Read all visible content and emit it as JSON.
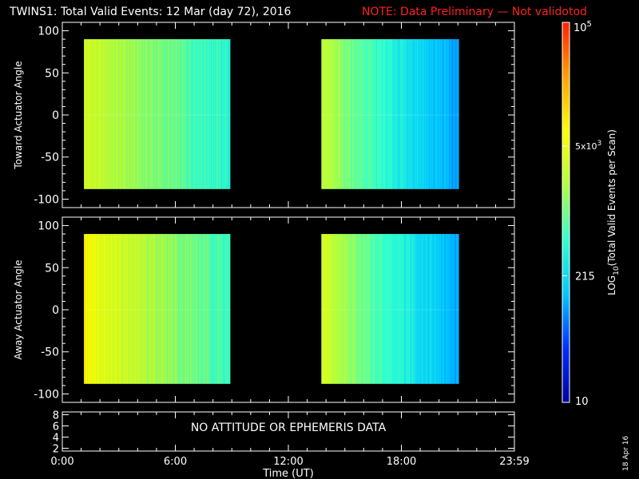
{
  "header": {
    "title": "TWINS1: Total Valid Events: 12 Mar (day  72), 2016",
    "note": "NOTE: Data Preliminary — Not validotod",
    "note_color": "#ff2020"
  },
  "footer": {
    "xlabel": "Time (UT)",
    "date_stamp": "18 Apr 16"
  },
  "chart_data": [
    {
      "type": "heatmap",
      "ylabel": "Toward Actuator Angle",
      "ylim": [
        -110,
        110
      ],
      "yticks": [
        100,
        50,
        0,
        -50,
        -100
      ],
      "xlim_hours": [
        0,
        24
      ],
      "xticks": [
        "0:00",
        "6:00",
        "12:00",
        "18:00",
        "23:59"
      ],
      "y_extent": [
        -88,
        90
      ],
      "segments": [
        {
          "t_start": 1.15,
          "t_end": 8.9,
          "log_start": 3.55,
          "log_end": 2.65
        },
        {
          "t_start": 13.75,
          "t_end": 21.05,
          "log_start": 3.4,
          "log_end": 1.95
        }
      ]
    },
    {
      "type": "heatmap",
      "ylabel": "Away Actuator Angle",
      "ylim": [
        -110,
        110
      ],
      "yticks": [
        100,
        50,
        0,
        -50,
        -100
      ],
      "xlim_hours": [
        0,
        24
      ],
      "xticks": [
        "0:00",
        "6:00",
        "12:00",
        "18:00",
        "23:59"
      ],
      "y_extent": [
        -88,
        90
      ],
      "segments": [
        {
          "t_start": 1.15,
          "t_end": 8.9,
          "log_start": 3.9,
          "log_end": 2.75
        },
        {
          "t_start": 13.75,
          "t_end": 21.05,
          "log_start": 3.55,
          "log_end": 2.0
        }
      ]
    },
    {
      "type": "line",
      "ylim": [
        1.5,
        8.5
      ],
      "yticks": [
        8,
        6,
        4,
        2
      ],
      "message": "NO ATTITUDE OR EPHEMERIS DATA"
    }
  ],
  "colorbar": {
    "label_main": "LOG",
    "label_sub": "10",
    "label_rest": "(Total Valid Events per Scan)",
    "range": [
      10,
      100000
    ],
    "tick_top_base": "10",
    "tick_top_exp": "5",
    "tick_mid_prefix": "5x10",
    "tick_mid_exp": "3",
    "tick_mid_value": 5000,
    "tick_low": "215",
    "tick_low_value": 215,
    "tick_bottom": "10",
    "stops": [
      "#0000a0",
      "#0030ff",
      "#00c8ff",
      "#30ffd0",
      "#b0ff40",
      "#ffff00",
      "#ffa000",
      "#ff2000"
    ]
  }
}
